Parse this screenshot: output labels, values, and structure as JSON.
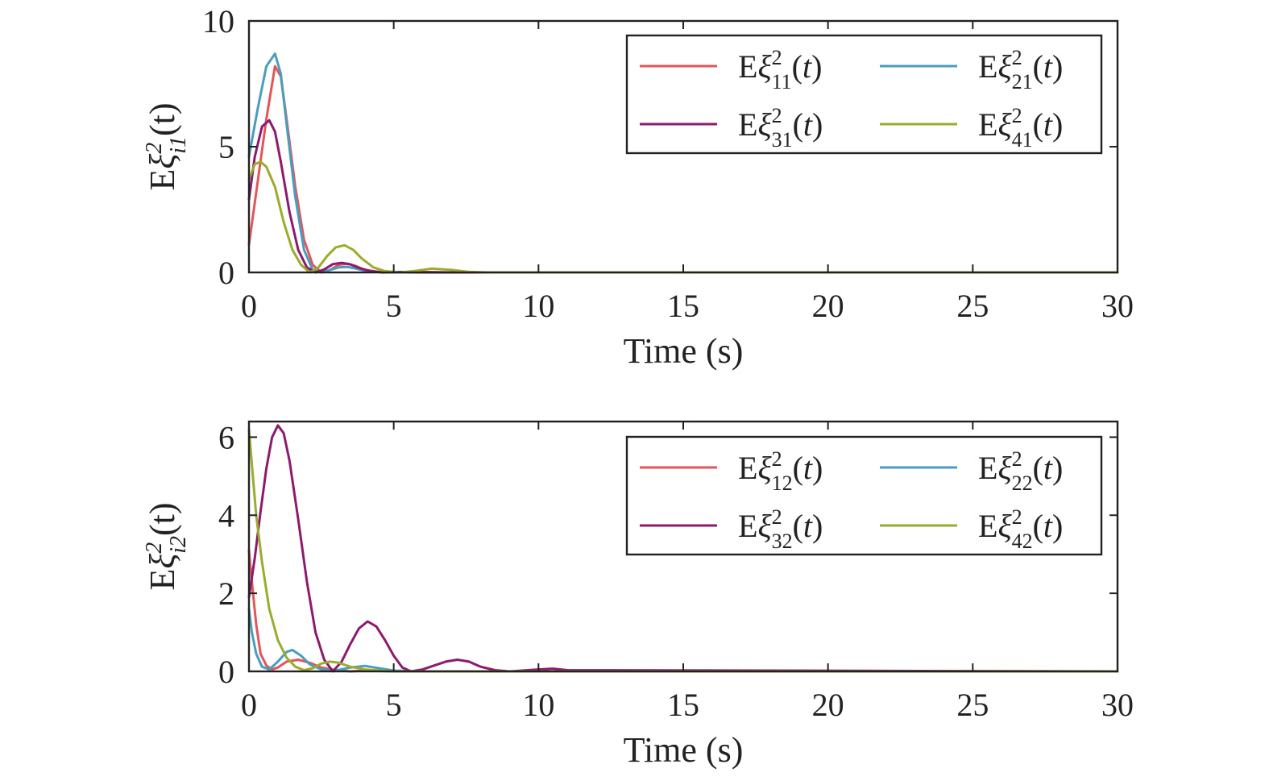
{
  "colors": {
    "s1": "#e1565a",
    "s2": "#4a9ebd",
    "s3": "#8c1a6e",
    "s4": "#9aab2e",
    "axis": "#222222"
  },
  "chart_data": [
    {
      "type": "line",
      "xlabel": "Time (s)",
      "ylabel_base": "E",
      "ylabel_symbol": "ξ",
      "ylabel_sup": "2",
      "ylabel_sub": "i1",
      "ylabel_arg": "(t)",
      "xlim": [
        0,
        30
      ],
      "ylim": [
        0,
        10
      ],
      "xticks": [
        0,
        5,
        10,
        15,
        20,
        25,
        30
      ],
      "yticks": [
        0,
        5,
        10
      ],
      "grid": false,
      "legend_placement": "top-right",
      "series": [
        {
          "name": "Eξ²₁₁(t)",
          "legend_sub": "11",
          "color_key": "s1",
          "x": [
            0,
            0.3,
            0.6,
            0.9,
            1.1,
            1.3,
            1.6,
            1.9,
            2.2,
            2.5,
            2.8,
            3.1,
            3.4,
            3.7,
            4.0,
            4.5,
            5.0,
            6.0,
            7.0,
            30
          ],
          "y": [
            1.1,
            3.6,
            6.1,
            8.2,
            7.8,
            6.1,
            3.4,
            1.3,
            0.3,
            0.0,
            0.1,
            0.3,
            0.35,
            0.25,
            0.1,
            0.02,
            0.0,
            0.02,
            0.0,
            0.0
          ]
        },
        {
          "name": "Eξ²₂₁(t)",
          "legend_sub": "21",
          "color_key": "s2",
          "x": [
            0,
            0.3,
            0.6,
            0.9,
            1.1,
            1.3,
            1.6,
            1.9,
            2.2,
            2.5,
            2.8,
            3.1,
            3.4,
            3.7,
            4.0,
            4.5,
            5.0,
            6.0,
            30
          ],
          "y": [
            4.6,
            6.5,
            8.2,
            8.7,
            7.9,
            5.9,
            3.0,
            0.9,
            0.1,
            0.02,
            0.1,
            0.2,
            0.22,
            0.15,
            0.07,
            0.01,
            0.0,
            0.0,
            0.0
          ]
        },
        {
          "name": "Eξ²₃₁(t)",
          "legend_sub": "31",
          "color_key": "s3",
          "x": [
            0,
            0.2,
            0.45,
            0.7,
            0.9,
            1.1,
            1.4,
            1.7,
            2.0,
            2.3,
            2.6,
            2.9,
            3.2,
            3.5,
            3.8,
            4.2,
            4.6,
            5.2,
            6.0,
            30
          ],
          "y": [
            2.9,
            4.6,
            5.8,
            6.05,
            5.6,
            4.4,
            2.4,
            0.9,
            0.2,
            0.0,
            0.12,
            0.33,
            0.38,
            0.32,
            0.18,
            0.05,
            0.0,
            0.02,
            0.0,
            0.0
          ]
        },
        {
          "name": "Eξ²₄₁(t)",
          "legend_sub": "41",
          "color_key": "s4",
          "x": [
            0,
            0.2,
            0.4,
            0.6,
            0.9,
            1.2,
            1.5,
            1.8,
            2.1,
            2.4,
            2.7,
            3.0,
            3.3,
            3.6,
            3.9,
            4.3,
            4.7,
            5.2,
            5.7,
            6.3,
            7.0,
            7.6,
            8.2,
            30
          ],
          "y": [
            3.7,
            4.3,
            4.4,
            4.2,
            3.4,
            2.0,
            0.9,
            0.3,
            0.0,
            0.2,
            0.65,
            1.0,
            1.08,
            0.9,
            0.55,
            0.2,
            0.05,
            0.0,
            0.05,
            0.15,
            0.1,
            0.02,
            0.0,
            0.0
          ]
        }
      ]
    },
    {
      "type": "line",
      "xlabel": "Time (s)",
      "ylabel_base": "E",
      "ylabel_symbol": "ξ",
      "ylabel_sup": "2",
      "ylabel_sub": "i2",
      "ylabel_arg": "(t)",
      "xlim": [
        0,
        30
      ],
      "ylim": [
        0,
        6.4
      ],
      "xticks": [
        0,
        5,
        10,
        15,
        20,
        25,
        30
      ],
      "yticks": [
        0,
        2,
        4,
        6
      ],
      "grid": false,
      "legend_placement": "top-right",
      "series": [
        {
          "name": "Eξ²₁₂(t)",
          "legend_sub": "12",
          "color_key": "s1",
          "x": [
            0,
            0.1,
            0.25,
            0.4,
            0.6,
            0.8,
            1.0,
            1.3,
            1.7,
            2.1,
            2.5,
            3.0,
            3.5,
            4.0,
            5.0,
            30
          ],
          "y": [
            3.1,
            2.3,
            1.2,
            0.45,
            0.15,
            0.05,
            0.1,
            0.25,
            0.3,
            0.22,
            0.1,
            0.03,
            0.0,
            0.02,
            0.0,
            0.0
          ]
        },
        {
          "name": "Eξ²₂₂(t)",
          "legend_sub": "22",
          "color_key": "s2",
          "x": [
            0,
            0.1,
            0.25,
            0.45,
            0.7,
            1.0,
            1.3,
            1.5,
            1.8,
            2.1,
            2.5,
            3.0,
            3.5,
            4.0,
            4.5,
            5.0,
            6.0,
            30
          ],
          "y": [
            1.6,
            1.0,
            0.45,
            0.12,
            0.05,
            0.25,
            0.5,
            0.55,
            0.4,
            0.18,
            0.05,
            0.02,
            0.1,
            0.14,
            0.08,
            0.02,
            0.0,
            0.0
          ]
        },
        {
          "name": "Eξ²₃₂(t)",
          "legend_sub": "32",
          "color_key": "s3",
          "x": [
            0,
            0.2,
            0.4,
            0.6,
            0.8,
            1.0,
            1.2,
            1.4,
            1.7,
            2.0,
            2.3,
            2.6,
            2.9,
            3.2,
            3.5,
            3.8,
            4.1,
            4.4,
            4.7,
            5.0,
            5.3,
            5.6,
            6.0,
            6.4,
            6.8,
            7.2,
            7.6,
            8.0,
            8.5,
            9.0,
            10.0,
            10.5,
            11.0,
            30
          ],
          "y": [
            1.9,
            2.9,
            4.1,
            5.2,
            6.0,
            6.3,
            6.1,
            5.4,
            3.9,
            2.3,
            1.0,
            0.3,
            0.0,
            0.25,
            0.7,
            1.1,
            1.28,
            1.15,
            0.8,
            0.4,
            0.1,
            0.0,
            0.05,
            0.15,
            0.25,
            0.3,
            0.25,
            0.12,
            0.03,
            0.0,
            0.05,
            0.07,
            0.03,
            0.0
          ]
        },
        {
          "name": "Eξ²₄₂(t)",
          "legend_sub": "42",
          "color_key": "s4",
          "x": [
            0,
            0.1,
            0.25,
            0.45,
            0.7,
            1.0,
            1.3,
            1.6,
            1.9,
            2.2,
            2.5,
            2.8,
            3.1,
            3.5,
            4.0,
            4.5,
            5.0,
            30
          ],
          "y": [
            6.2,
            5.3,
            4.0,
            2.8,
            1.6,
            0.8,
            0.35,
            0.12,
            0.03,
            0.08,
            0.2,
            0.25,
            0.22,
            0.12,
            0.05,
            0.02,
            0.0,
            0.0
          ]
        }
      ]
    }
  ]
}
